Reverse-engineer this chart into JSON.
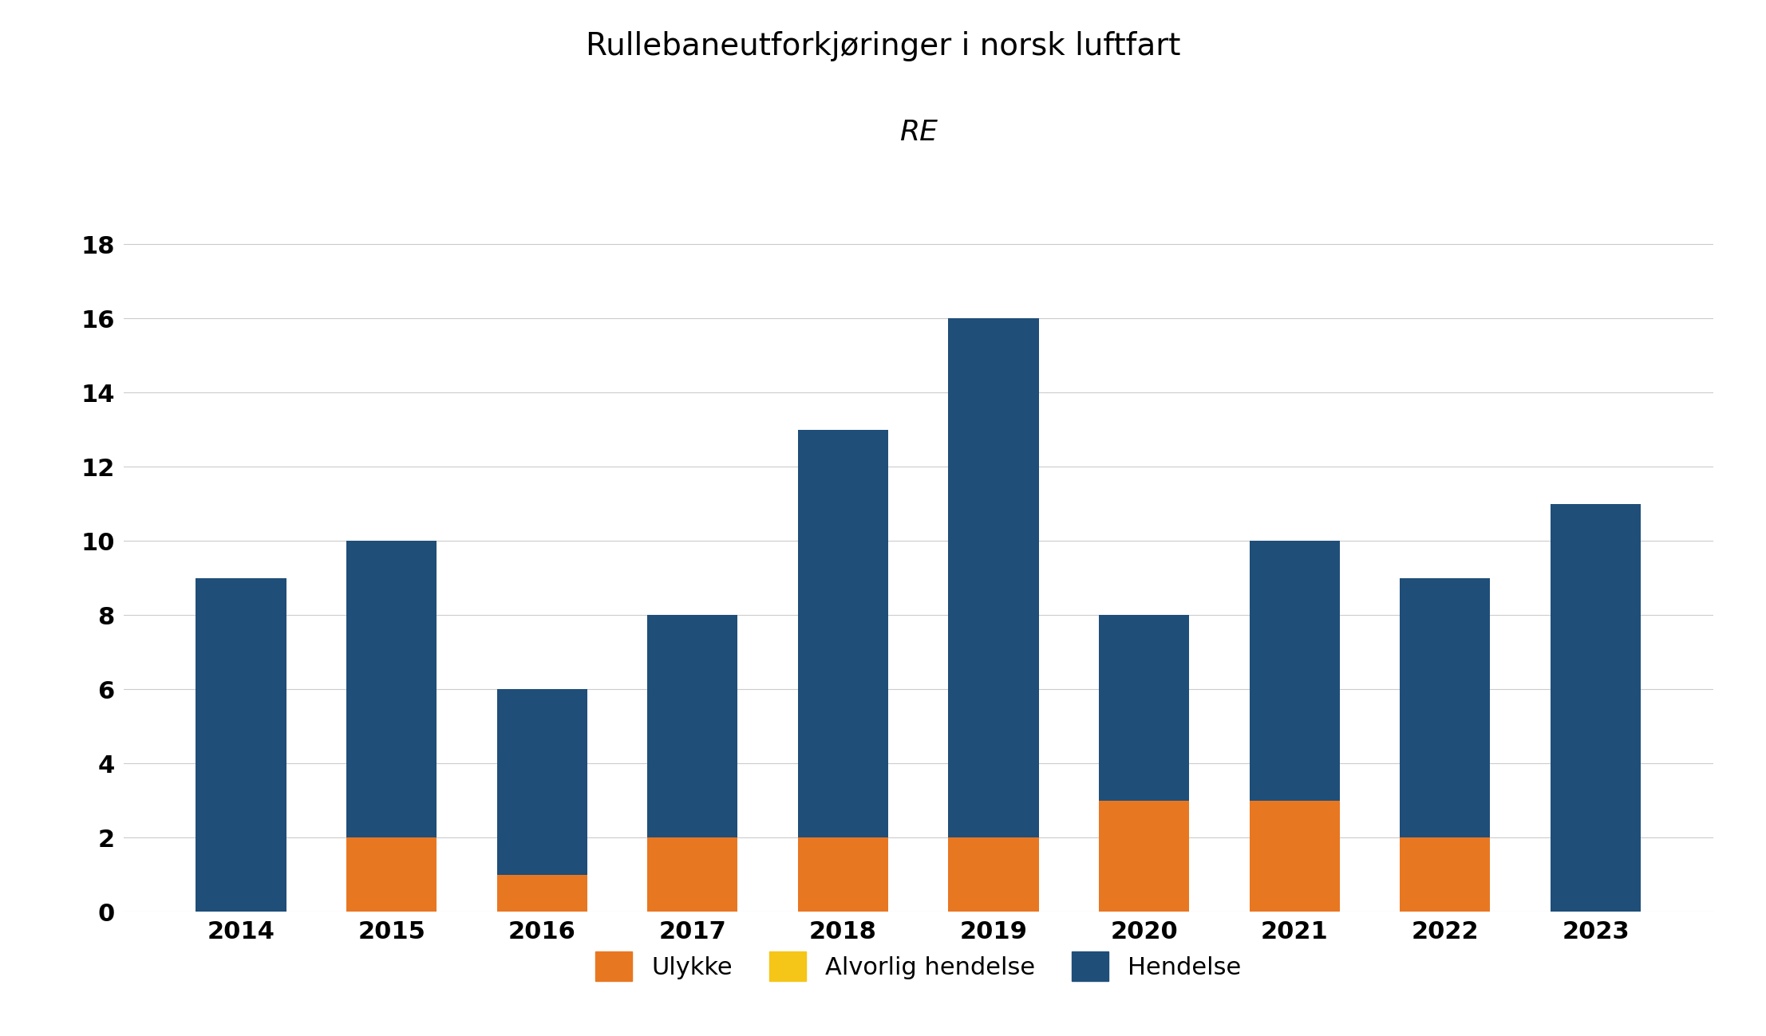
{
  "years": [
    2014,
    2015,
    2016,
    2017,
    2018,
    2019,
    2020,
    2021,
    2022,
    2023
  ],
  "ulykke": [
    0,
    2,
    1,
    2,
    2,
    2,
    3,
    3,
    2,
    0
  ],
  "alvorlig_hendelse": [
    0,
    0,
    0,
    0,
    0,
    0,
    0,
    0,
    0,
    0
  ],
  "hendelse": [
    9,
    8,
    5,
    6,
    11,
    14,
    5,
    7,
    7,
    11
  ],
  "color_ulykke": "#E87722",
  "color_alvorlig": "#F5C518",
  "color_hendelse": "#1F4E79",
  "title_line1": "Rullebaneutforkjøringer i norsk luftfart",
  "title_line2": "RE",
  "legend_labels": [
    "Ulykke",
    "Alvorlig hendelse",
    "Hendelse"
  ],
  "ylim": [
    0,
    19
  ],
  "yticks": [
    0,
    2,
    4,
    6,
    8,
    10,
    12,
    14,
    16,
    18
  ],
  "background_color": "#FFFFFF",
  "title_fontsize": 28,
  "subtitle_fontsize": 26,
  "tick_fontsize": 22,
  "legend_fontsize": 22,
  "bar_width": 0.6
}
